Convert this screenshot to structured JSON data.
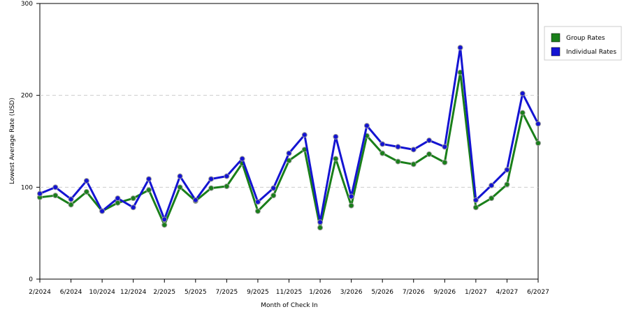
{
  "chart_data": {
    "type": "line",
    "x_label": "Month of Check In",
    "y_label": "Lowest Average Rate (USD)",
    "categories": [
      "2/2024",
      null,
      "6/2024",
      null,
      "10/2024",
      null,
      "12/2024",
      null,
      "2/2025",
      null,
      "5/2025",
      null,
      "7/2025",
      null,
      "9/2025",
      null,
      "11/2025",
      null,
      "1/2026",
      null,
      "3/2026",
      null,
      "5/2026",
      null,
      "7/2026",
      null,
      "9/2026",
      null,
      "1/2027",
      null,
      "4/2027",
      null,
      "6/2027"
    ],
    "series": [
      {
        "name": "Group Rates",
        "color": "#1a7f1a",
        "values": [
          89,
          91,
          81,
          95,
          74,
          83,
          88,
          97,
          59,
          100,
          85,
          99,
          101,
          126,
          74,
          91,
          129,
          141,
          56,
          131,
          80,
          156,
          137,
          128,
          125,
          136,
          127,
          225,
          78,
          88,
          103,
          181,
          148
        ]
      },
      {
        "name": "Individual Rates",
        "color": "#1414d2",
        "values": [
          93,
          100,
          87,
          107,
          74,
          88,
          78,
          109,
          65,
          112,
          86,
          109,
          112,
          131,
          84,
          99,
          137,
          157,
          62,
          155,
          90,
          167,
          147,
          144,
          141,
          151,
          144,
          252,
          86,
          102,
          119,
          202,
          169
        ]
      }
    ],
    "ylim": [
      0,
      300
    ],
    "yticks": [
      0,
      100,
      200,
      300
    ],
    "grid": true,
    "legend": "right"
  }
}
